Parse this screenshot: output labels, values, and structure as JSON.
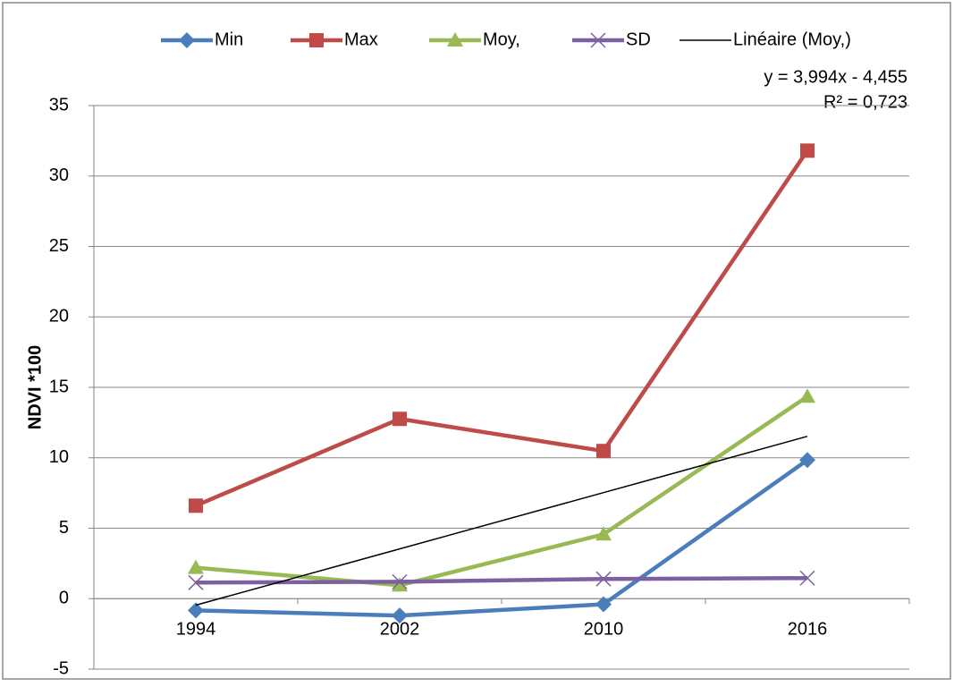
{
  "chart_data": {
    "type": "line",
    "categories": [
      "1994",
      "2002",
      "2010",
      "2016"
    ],
    "series": [
      {
        "name": "Min",
        "color": "#4a7ebb",
        "marker": "diamond",
        "values": [
          -0.83,
          -1.2,
          -0.4,
          9.84
        ]
      },
      {
        "name": "Max",
        "color": "#be4b48",
        "marker": "square",
        "values": [
          6.6,
          12.76,
          10.48,
          31.8
        ]
      },
      {
        "name": "Moy,",
        "color": "#98b954",
        "marker": "triangle",
        "values": [
          2.2,
          0.95,
          4.57,
          14.35
        ]
      },
      {
        "name": "SD",
        "color": "#7d60a0",
        "marker": "cross",
        "values": [
          1.14,
          1.2,
          1.4,
          1.46
        ]
      },
      {
        "name": "Linéaire (Moy,)",
        "color": "#000000",
        "marker": "none",
        "values": [
          -0.461,
          3.533,
          7.527,
          11.521
        ]
      }
    ],
    "ylabel": "NDVI *100",
    "annotations": [
      "y = 3,994x - 4,455",
      "R² = 0,723"
    ],
    "ylim": [
      -5,
      35
    ],
    "yticks": [
      -5,
      0,
      5,
      10,
      15,
      20,
      25,
      30,
      35
    ],
    "grid": true,
    "legend": "top"
  }
}
